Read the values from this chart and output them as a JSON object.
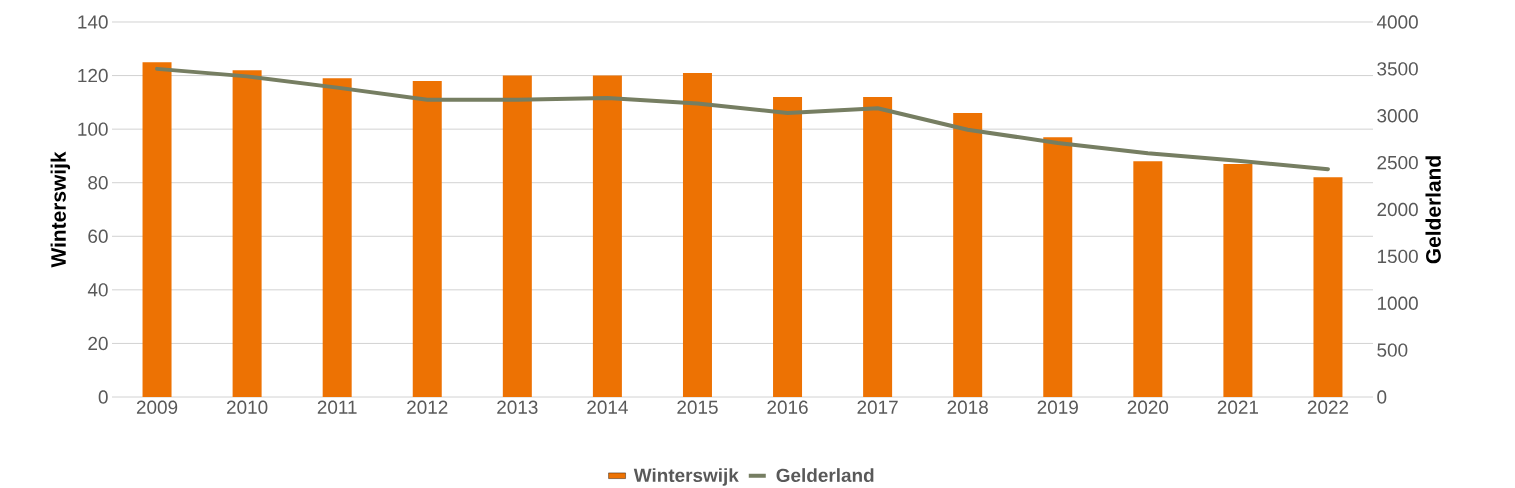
{
  "chart_data": {
    "type": "bar",
    "ylabel": "Winterswijk",
    "y2label": "Gelderland",
    "categories": [
      "2009",
      "2010",
      "2011",
      "2012",
      "2013",
      "2014",
      "2015",
      "2016",
      "2017",
      "2018",
      "2019",
      "2020",
      "2021",
      "2022"
    ],
    "series": [
      {
        "name": "Winterswijk",
        "color": "#ed7203",
        "values": [
          125,
          122,
          119,
          118,
          120,
          120,
          121,
          112,
          112,
          106,
          97,
          88,
          87,
          82
        ]
      },
      {
        "name": "Gelderland",
        "type": "line",
        "axis": "y2",
        "color": "#767e62",
        "values": [
          3500,
          3420,
          3300,
          3170,
          3170,
          3190,
          3130,
          3030,
          3080,
          2850,
          2710,
          2600,
          2520,
          2430
        ]
      }
    ],
    "ylim": [
      0,
      140
    ],
    "yticks": [
      0,
      20,
      40,
      60,
      80,
      100,
      120,
      140
    ],
    "y2lim": [
      0,
      4000
    ],
    "y2ticks": [
      0,
      500,
      1000,
      1500,
      2000,
      2500,
      3000,
      3500,
      4000
    ],
    "grid": "y",
    "legend": "bottom"
  }
}
